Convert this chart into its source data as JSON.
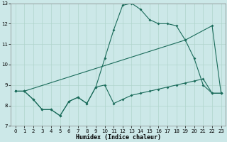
{
  "title": "",
  "xlabel": "Humidex (Indice chaleur)",
  "ylabel": "",
  "bg_color": "#cce8e8",
  "line_color": "#1a6b5a",
  "grid_color": "#b0d4cc",
  "xlim": [
    -0.5,
    23.5
  ],
  "ylim": [
    7,
    13
  ],
  "yticks": [
    7,
    8,
    9,
    10,
    11,
    12,
    13
  ],
  "xticks": [
    0,
    1,
    2,
    3,
    4,
    5,
    6,
    7,
    8,
    9,
    10,
    11,
    12,
    13,
    14,
    15,
    16,
    17,
    18,
    19,
    20,
    21,
    22,
    23
  ],
  "series1_x": [
    0,
    1,
    2,
    3,
    4,
    5,
    6,
    7,
    8,
    9,
    10,
    11,
    12,
    13,
    14,
    15,
    16,
    17,
    18,
    19,
    20,
    21,
    22,
    23
  ],
  "series1_y": [
    8.7,
    8.7,
    8.3,
    7.8,
    7.8,
    7.5,
    8.2,
    8.4,
    8.1,
    8.9,
    9.0,
    8.1,
    8.3,
    8.5,
    8.6,
    8.7,
    8.8,
    8.9,
    9.0,
    9.1,
    9.2,
    9.3,
    8.6,
    8.6
  ],
  "series2_x": [
    0,
    1,
    2,
    3,
    4,
    5,
    6,
    7,
    8,
    9,
    10,
    11,
    12,
    13,
    14,
    15,
    16,
    17,
    18,
    19,
    20,
    21,
    22,
    23
  ],
  "series2_y": [
    8.7,
    8.7,
    8.3,
    7.8,
    7.8,
    7.5,
    8.2,
    8.4,
    8.1,
    8.9,
    10.3,
    11.7,
    12.9,
    13.0,
    12.7,
    12.2,
    12.0,
    12.0,
    11.9,
    11.2,
    10.3,
    9.0,
    8.6,
    8.6
  ],
  "series3_x": [
    0,
    1,
    19,
    22,
    23
  ],
  "series3_y": [
    8.7,
    8.7,
    11.2,
    11.9,
    8.6
  ]
}
